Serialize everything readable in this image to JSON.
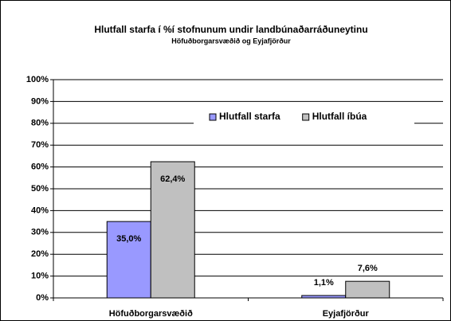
{
  "chart_data": {
    "type": "bar",
    "title": "Hlutfall starfa í %í stofnunum undir landbúnaðarráðuneytinu",
    "subtitle": "Höfuðborgarsvæðið og Eyjafjörður",
    "categories": [
      "Höfuðborgarsvæðið",
      "Eyjafjörður"
    ],
    "series": [
      {
        "name": "Hlutfall starfa",
        "color": "#9999ff",
        "values": [
          35.0,
          1.1
        ],
        "value_labels": [
          "35,0%",
          "1,1%"
        ]
      },
      {
        "name": "Hlutfall íbúa",
        "color": "#c0c0c0",
        "values": [
          62.4,
          7.6
        ],
        "value_labels": [
          "62,4%",
          "7,6%"
        ]
      }
    ],
    "ylim": [
      0,
      100
    ],
    "yticks": [
      {
        "value": 0,
        "label": "0%"
      },
      {
        "value": 10,
        "label": "10%"
      },
      {
        "value": 20,
        "label": "20%"
      },
      {
        "value": 30,
        "label": "30%"
      },
      {
        "value": 40,
        "label": "40%"
      },
      {
        "value": 50,
        "label": "50%"
      },
      {
        "value": 60,
        "label": "60%"
      },
      {
        "value": 70,
        "label": "70%"
      },
      {
        "value": 80,
        "label": "80%"
      },
      {
        "value": 90,
        "label": "90%"
      },
      {
        "value": 100,
        "label": "100%"
      }
    ],
    "grid": true,
    "legend": "top"
  }
}
